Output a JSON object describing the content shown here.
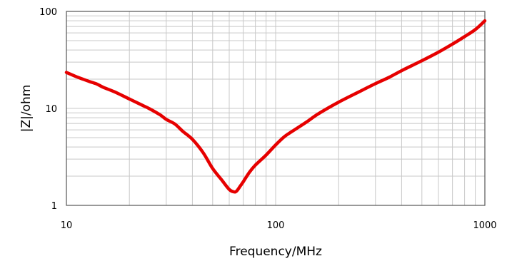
{
  "chart_data": {
    "type": "line",
    "title": "",
    "xlabel": "Frequency/MHz",
    "ylabel": "|Z|/ohm",
    "x_scale": "log",
    "y_scale": "log",
    "xlim": [
      10,
      1000
    ],
    "ylim": [
      1,
      100
    ],
    "x_tick_labels": [
      "10",
      "100",
      "1000"
    ],
    "y_tick_labels": [
      "1",
      "10",
      "100"
    ],
    "grid": true,
    "series": [
      {
        "color": "#e60000",
        "x": [
          10,
          11,
          12,
          13,
          14,
          15,
          17,
          20,
          23,
          25,
          28,
          30,
          33,
          36,
          40,
          45,
          50,
          55,
          60,
          63,
          65,
          68,
          70,
          75,
          80,
          90,
          100,
          110,
          120,
          140,
          160,
          200,
          250,
          300,
          350,
          400,
          500,
          600,
          700,
          800,
          900,
          1000
        ],
        "y": [
          23.5,
          21.5,
          20,
          18.8,
          17.8,
          16.5,
          14.8,
          12.5,
          10.8,
          9.9,
          8.6,
          7.7,
          6.9,
          5.8,
          4.8,
          3.5,
          2.4,
          1.85,
          1.46,
          1.38,
          1.4,
          1.6,
          1.75,
          2.2,
          2.6,
          3.3,
          4.2,
          5.1,
          5.8,
          7.2,
          8.8,
          11.6,
          14.8,
          18,
          21,
          24.5,
          31,
          38,
          46,
          55,
          65,
          80
        ]
      }
    ]
  }
}
